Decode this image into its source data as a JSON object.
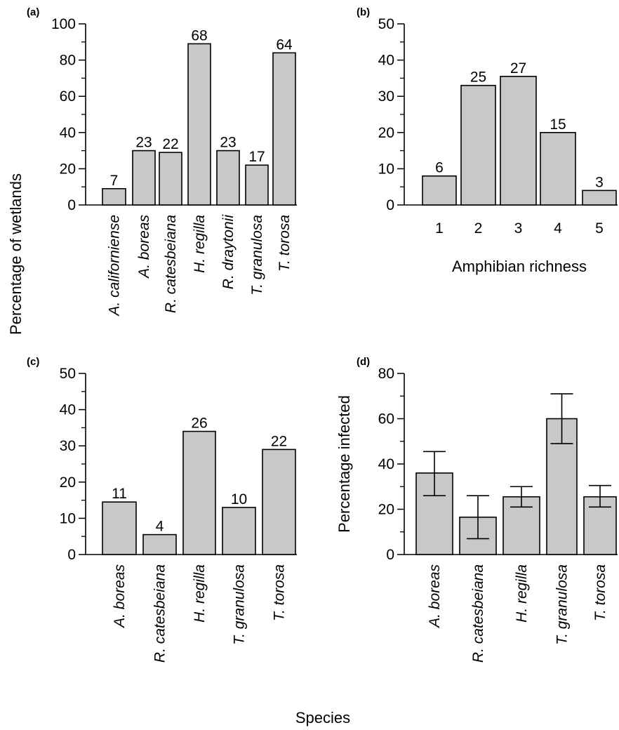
{
  "shared_labels": {
    "ylabel_left": "Percentage of wetlands",
    "xlabel_bottom": "Species"
  },
  "chart_data": [
    {
      "panel": "(a)",
      "type": "bar",
      "categories": [
        "A. californiense",
        "A. boreas",
        "R. catesbeiana",
        "H. regilla",
        "R. draytonii",
        "T. granulosa",
        "T. torosa"
      ],
      "values": [
        9,
        30,
        29,
        89,
        30,
        22,
        84
      ],
      "data_labels": [
        "7",
        "23",
        "22",
        "68",
        "23",
        "17",
        "64"
      ],
      "ylim": [
        0,
        100
      ],
      "yticks": [
        0,
        20,
        40,
        60,
        80,
        100
      ],
      "xlabel": "",
      "ylabel": "",
      "grid": false
    },
    {
      "panel": "(b)",
      "type": "bar",
      "categories": [
        "1",
        "2",
        "3",
        "4",
        "5"
      ],
      "values": [
        8,
        33,
        35.5,
        20,
        4
      ],
      "data_labels": [
        "6",
        "25",
        "27",
        "15",
        "3"
      ],
      "ylim": [
        0,
        50
      ],
      "yticks": [
        0,
        10,
        20,
        30,
        40,
        50
      ],
      "xlabel": "Amphibian richness",
      "ylabel": "",
      "grid": false
    },
    {
      "panel": "(c)",
      "type": "bar",
      "categories": [
        "A. boreas",
        "R. catesbeiana",
        "H. regilla",
        "T. granulosa",
        "T. torosa"
      ],
      "values": [
        14.5,
        5.5,
        34,
        13,
        29
      ],
      "data_labels": [
        "11",
        "4",
        "26",
        "10",
        "22"
      ],
      "ylim": [
        0,
        50
      ],
      "yticks": [
        0,
        10,
        20,
        30,
        40,
        50
      ],
      "xlabel": "",
      "ylabel": "",
      "grid": false
    },
    {
      "panel": "(d)",
      "type": "bar",
      "categories": [
        "A. boreas",
        "R. catesbeiana",
        "H. regilla",
        "T. granulosa",
        "T. torosa"
      ],
      "values": [
        36,
        16.5,
        25.5,
        60,
        25.5
      ],
      "error_low": [
        26,
        7,
        21,
        49,
        21
      ],
      "error_high": [
        45.5,
        26,
        30,
        71,
        30.5
      ],
      "data_labels": [],
      "ylim": [
        0,
        80
      ],
      "yticks": [
        0,
        20,
        40,
        60,
        80
      ],
      "xlabel": "",
      "ylabel": "Percentage infected",
      "grid": false
    }
  ],
  "colors": {
    "bar_fill": "#c8c8c8",
    "bar_stroke": "#000000",
    "axis": "#000000"
  }
}
